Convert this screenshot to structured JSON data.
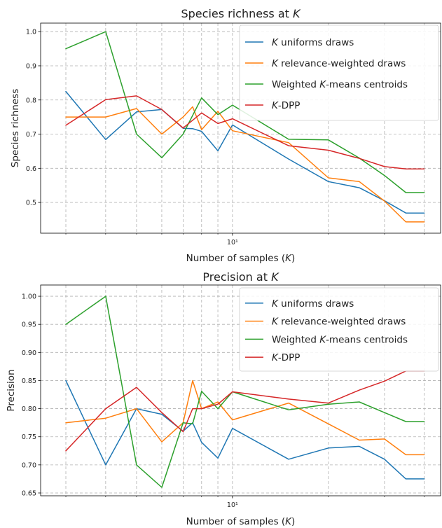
{
  "chart_data": [
    {
      "type": "line",
      "title": "Species richness at K",
      "title_parts": [
        "Species richness at ",
        "K"
      ],
      "xlabel": "Number of samples (K)",
      "xlabel_parts": [
        "Number of samples (",
        "K",
        ")"
      ],
      "ylabel": "Species richness",
      "xscale": "log",
      "xlim": [
        2.5,
        45
      ],
      "ylim": [
        0.41,
        1.025
      ],
      "x_major_tick_label": "10¹",
      "yticks": [
        0.5,
        0.6,
        0.7,
        0.8,
        0.9,
        1.0
      ],
      "ytick_labels": [
        "0.5",
        "0.6",
        "0.7",
        "0.8",
        "0.9",
        "1.0"
      ],
      "grid": true,
      "legend_position": "upper right",
      "x": [
        3,
        4,
        5,
        6,
        7,
        8,
        9,
        10,
        15,
        20,
        25,
        30,
        35,
        40
      ],
      "series": [
        {
          "name": "K uniforms draws",
          "name_parts": [
            "K",
            " uniforms draws"
          ],
          "color": "#1f77b4",
          "x": [
            3,
            4,
            5,
            6,
            7,
            7.5,
            8,
            9,
            10,
            15,
            20,
            25,
            30,
            35,
            40
          ],
          "values": [
            0.825,
            0.684,
            0.765,
            0.772,
            0.717,
            0.716,
            0.708,
            0.651,
            0.727,
            0.627,
            0.561,
            0.543,
            0.505,
            0.469,
            0.469
          ]
        },
        {
          "name": "K relevance-weighted draws",
          "name_parts": [
            "K",
            " relevance-weighted draws"
          ],
          "color": "#ff7f0e",
          "x": [
            3,
            4,
            5,
            6,
            7,
            7.5,
            8,
            9,
            10,
            15,
            20,
            25,
            30,
            35,
            40
          ],
          "values": [
            0.75,
            0.75,
            0.775,
            0.7,
            0.75,
            0.78,
            0.713,
            0.767,
            0.71,
            0.675,
            0.572,
            0.561,
            0.504,
            0.443,
            0.443
          ]
        },
        {
          "name": "Weighted K-means centroids",
          "name_parts": [
            "Weighted ",
            "K",
            "-means centroids"
          ],
          "color": "#2ca02c",
          "x": [
            3,
            4,
            5,
            6,
            7,
            8,
            9,
            10,
            15,
            20,
            25,
            30,
            35,
            40
          ],
          "values": [
            0.95,
            1.0,
            0.7,
            0.631,
            0.7,
            0.806,
            0.757,
            0.785,
            0.685,
            0.683,
            0.63,
            0.579,
            0.529,
            0.529
          ]
        },
        {
          "name": "K-DPP",
          "name_parts": [
            "K",
            "-DPP"
          ],
          "color": "#d62728",
          "x": [
            3,
            4,
            5,
            6,
            7,
            8,
            9,
            10,
            15,
            20,
            25,
            30,
            35,
            40
          ],
          "values": [
            0.726,
            0.801,
            0.812,
            0.772,
            0.718,
            0.762,
            0.731,
            0.745,
            0.666,
            0.653,
            0.629,
            0.605,
            0.598,
            0.598
          ]
        }
      ]
    },
    {
      "type": "line",
      "title": "Precision at K",
      "title_parts": [
        "Precision at ",
        "K"
      ],
      "xlabel": "Number of samples (K)",
      "xlabel_parts": [
        "Number of samples (",
        "K",
        ")"
      ],
      "ylabel": "Precision",
      "xscale": "log",
      "xlim": [
        2.5,
        45
      ],
      "ylim": [
        0.645,
        1.02
      ],
      "x_major_tick_label": "10¹",
      "yticks": [
        0.65,
        0.7,
        0.75,
        0.8,
        0.85,
        0.9,
        0.95,
        1.0
      ],
      "ytick_labels": [
        "0.65",
        "0.70",
        "0.75",
        "0.80",
        "0.85",
        "0.90",
        "0.95",
        "1.00"
      ],
      "grid": true,
      "legend_position": "upper right",
      "series": [
        {
          "name": "K uniforms draws",
          "name_parts": [
            "K",
            " uniforms draws"
          ],
          "color": "#1f77b4",
          "x": [
            3,
            4,
            5,
            6,
            7,
            7.5,
            8,
            9,
            10,
            15,
            20,
            25,
            30,
            35,
            40
          ],
          "values": [
            0.85,
            0.7,
            0.8,
            0.79,
            0.76,
            0.775,
            0.74,
            0.712,
            0.765,
            0.71,
            0.73,
            0.733,
            0.71,
            0.675,
            0.675
          ]
        },
        {
          "name": "K relevance-weighted draws",
          "name_parts": [
            "K",
            " relevance-weighted draws"
          ],
          "color": "#ff7f0e",
          "x": [
            3,
            4,
            5,
            6,
            7,
            7.5,
            8,
            9,
            10,
            15,
            20,
            25,
            30,
            35,
            40
          ],
          "values": [
            0.775,
            0.783,
            0.8,
            0.741,
            0.775,
            0.85,
            0.8,
            0.812,
            0.78,
            0.81,
            0.773,
            0.744,
            0.746,
            0.718,
            0.718
          ]
        },
        {
          "name": "Weighted K-means centroids",
          "name_parts": [
            "Weighted ",
            "K",
            "-means centroids"
          ],
          "color": "#2ca02c",
          "x": [
            3,
            4,
            5,
            6,
            7,
            7.5,
            8,
            9,
            10,
            15,
            20,
            25,
            30,
            35,
            40
          ],
          "values": [
            0.95,
            1.0,
            0.7,
            0.66,
            0.775,
            0.773,
            0.831,
            0.8,
            0.83,
            0.798,
            0.808,
            0.812,
            0.793,
            0.777,
            0.777
          ]
        },
        {
          "name": "K-DPP",
          "name_parts": [
            "K",
            "-DPP"
          ],
          "color": "#d62728",
          "x": [
            3,
            4,
            5,
            6,
            7,
            7.5,
            8,
            9,
            10,
            15,
            20,
            25,
            30,
            35,
            40
          ],
          "values": [
            0.725,
            0.8,
            0.838,
            0.793,
            0.759,
            0.8,
            0.8,
            0.808,
            0.83,
            0.817,
            0.81,
            0.833,
            0.849,
            0.867,
            0.867
          ]
        }
      ]
    }
  ]
}
